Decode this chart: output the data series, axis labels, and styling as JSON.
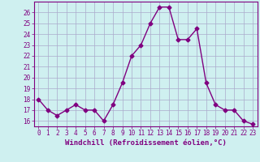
{
  "x": [
    0,
    1,
    2,
    3,
    4,
    5,
    6,
    7,
    8,
    9,
    10,
    11,
    12,
    13,
    14,
    15,
    16,
    17,
    18,
    19,
    20,
    21,
    22,
    23
  ],
  "y": [
    18,
    17,
    16.5,
    17,
    17.5,
    17,
    17,
    16,
    17.5,
    19.5,
    22,
    23,
    25,
    26.5,
    26.5,
    23.5,
    23.5,
    24.5,
    19.5,
    17.5,
    17,
    17,
    16,
    15.7
  ],
  "xlabel": "Windchill (Refroidissement éolien,°C)",
  "xlim": [
    -0.5,
    23.5
  ],
  "ylim": [
    15.5,
    27
  ],
  "xticks": [
    0,
    1,
    2,
    3,
    4,
    5,
    6,
    7,
    8,
    9,
    10,
    11,
    12,
    13,
    14,
    15,
    16,
    17,
    18,
    19,
    20,
    21,
    22,
    23
  ],
  "yticks": [
    16,
    17,
    18,
    19,
    20,
    21,
    22,
    23,
    24,
    25,
    26
  ],
  "line_color": "#800080",
  "marker": "D",
  "marker_size": 2.5,
  "bg_color": "#cff0f0",
  "grid_color": "#aaaacc",
  "xlabel_fontsize": 6.5,
  "tick_fontsize": 5.5,
  "line_width": 1.0
}
